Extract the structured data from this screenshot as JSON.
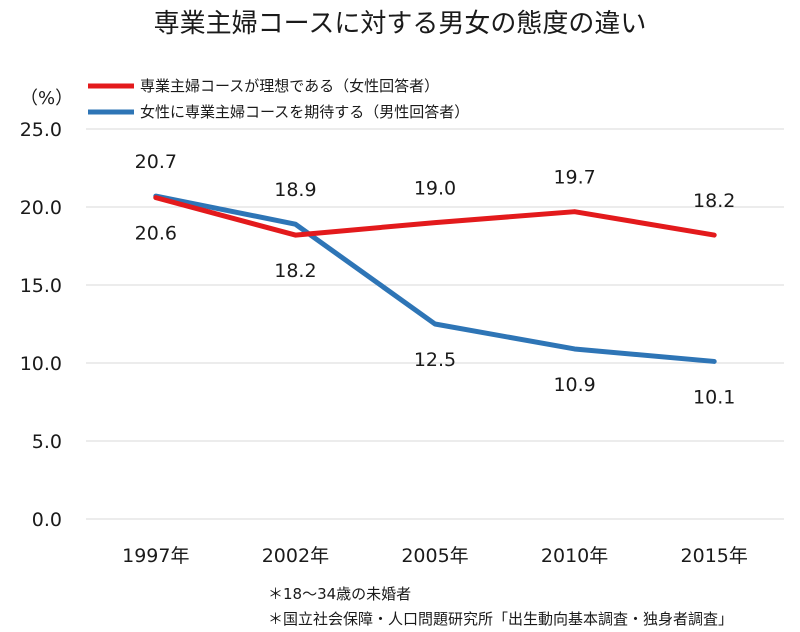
{
  "chart_data": {
    "type": "line",
    "title": "専業主婦コースに対する男女の態度の違い",
    "unit_label": "（%）",
    "categories": [
      "1997年",
      "2002年",
      "2005年",
      "2010年",
      "2015年"
    ],
    "ylim": [
      0,
      25
    ],
    "yticks": [
      "0.0",
      "5.0",
      "10.0",
      "15.0",
      "20.0",
      "25.0"
    ],
    "grid": true,
    "legend_position": "top-left",
    "series": [
      {
        "name": "専業主婦コースが理想である（女性回答者）",
        "color": "#e31a1c",
        "values": [
          20.6,
          18.2,
          19.0,
          19.7,
          18.2
        ],
        "labels": [
          "20.6",
          "18.2",
          "19.0",
          "19.7",
          "18.2"
        ]
      },
      {
        "name": "女性に専業主婦コースを期待する（男性回答者）",
        "color": "#2e75b6",
        "values": [
          20.7,
          18.9,
          12.5,
          10.9,
          10.1
        ],
        "labels": [
          "20.7",
          "18.9",
          "12.5",
          "10.9",
          "10.1"
        ]
      }
    ],
    "notes": [
      "＊18～34歳の未婚者",
      "＊国立社会保障・人口問題研究所「出生動向基本調査・独身者調査」"
    ]
  }
}
